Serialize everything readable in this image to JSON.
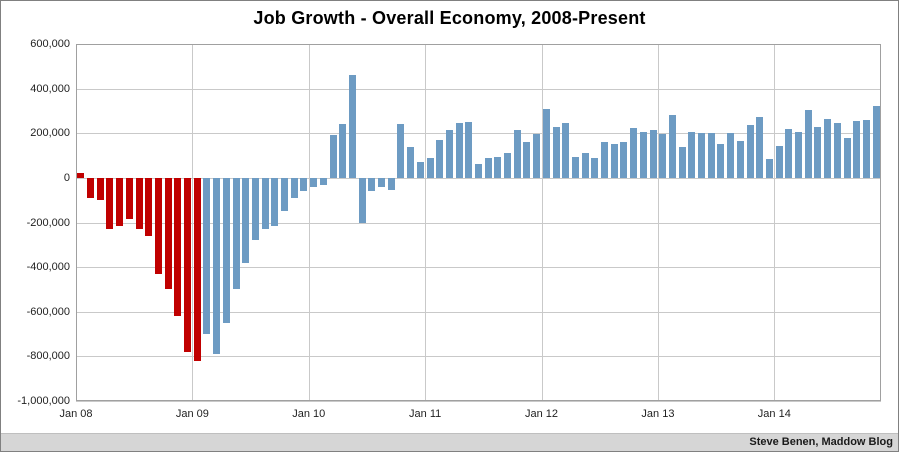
{
  "header": {
    "title": "Job Growth - Overall Economy, 2008-Present"
  },
  "footer": {
    "credit": "Steve Benen, Maddow Blog"
  },
  "chart_data": {
    "type": "bar",
    "title": "Job Growth - Overall Economy, 2008-Present",
    "xlabel": "",
    "ylabel": "",
    "ylim": [
      -1000000,
      600000
    ],
    "grid": true,
    "legend": "none",
    "bar_color_red": "#c00000",
    "bar_color_blue": "#6d9bc3",
    "red_last_index": 12,
    "y_ticks": [
      {
        "value": 600000,
        "label": "600,000"
      },
      {
        "value": 400000,
        "label": "400,000"
      },
      {
        "value": 200000,
        "label": "200,000"
      },
      {
        "value": 0,
        "label": "0"
      },
      {
        "value": -200000,
        "label": "-200,000"
      },
      {
        "value": -400000,
        "label": "-400,000"
      },
      {
        "value": -600000,
        "label": "-600,000"
      },
      {
        "value": -800000,
        "label": "-800,000"
      },
      {
        "value": -1000000,
        "label": "-1,000,000"
      }
    ],
    "x_ticks": [
      {
        "index": 0,
        "label": "Jan 08"
      },
      {
        "index": 12,
        "label": "Jan 09"
      },
      {
        "index": 24,
        "label": "Jan 10"
      },
      {
        "index": 36,
        "label": "Jan 11"
      },
      {
        "index": 48,
        "label": "Jan 12"
      },
      {
        "index": 60,
        "label": "Jan 13"
      },
      {
        "index": 72,
        "label": "Jan 14"
      }
    ],
    "categories": [
      "Jan 08",
      "Feb 08",
      "Mar 08",
      "Apr 08",
      "May 08",
      "Jun 08",
      "Jul 08",
      "Aug 08",
      "Sep 08",
      "Oct 08",
      "Nov 08",
      "Dec 08",
      "Jan 09",
      "Feb 09",
      "Mar 09",
      "Apr 09",
      "May 09",
      "Jun 09",
      "Jul 09",
      "Aug 09",
      "Sep 09",
      "Oct 09",
      "Nov 09",
      "Dec 09",
      "Jan 10",
      "Feb 10",
      "Mar 10",
      "Apr 10",
      "May 10",
      "Jun 10",
      "Jul 10",
      "Aug 10",
      "Sep 10",
      "Oct 10",
      "Nov 10",
      "Dec 10",
      "Jan 11",
      "Feb 11",
      "Mar 11",
      "Apr 11",
      "May 11",
      "Jun 11",
      "Jul 11",
      "Aug 11",
      "Sep 11",
      "Oct 11",
      "Nov 11",
      "Dec 11",
      "Jan 12",
      "Feb 12",
      "Mar 12",
      "Apr 12",
      "May 12",
      "Jun 12",
      "Jul 12",
      "Aug 12",
      "Sep 12",
      "Oct 12",
      "Nov 12",
      "Dec 12",
      "Jan 13",
      "Feb 13",
      "Mar 13",
      "Apr 13",
      "May 13",
      "Jun 13",
      "Jul 13",
      "Aug 13",
      "Sep 13",
      "Oct 13",
      "Nov 13",
      "Dec 13",
      "Jan 14",
      "Feb 14",
      "Mar 14",
      "Apr 14",
      "May 14",
      "Jun 14",
      "Jul 14",
      "Aug 14",
      "Sep 14",
      "Oct 14",
      "Nov 14"
    ],
    "values": [
      20000,
      -90000,
      -100000,
      -230000,
      -215000,
      -185000,
      -230000,
      -260000,
      -430000,
      -500000,
      -620000,
      -780000,
      -820000,
      -700000,
      -790000,
      -650000,
      -500000,
      -380000,
      -280000,
      -230000,
      -215000,
      -150000,
      -90000,
      -60000,
      -40000,
      -30000,
      190000,
      240000,
      460000,
      -200000,
      -60000,
      -40000,
      -55000,
      240000,
      140000,
      70000,
      90000,
      170000,
      215000,
      245000,
      250000,
      60000,
      90000,
      95000,
      110000,
      215000,
      160000,
      195000,
      310000,
      230000,
      245000,
      95000,
      110000,
      90000,
      160000,
      150000,
      160000,
      225000,
      205000,
      215000,
      195000,
      280000,
      140000,
      205000,
      200000,
      200000,
      150000,
      200000,
      165000,
      235000,
      275000,
      85000,
      145000,
      220000,
      205000,
      305000,
      230000,
      265000,
      245000,
      180000,
      255000,
      260000,
      320000
    ]
  }
}
